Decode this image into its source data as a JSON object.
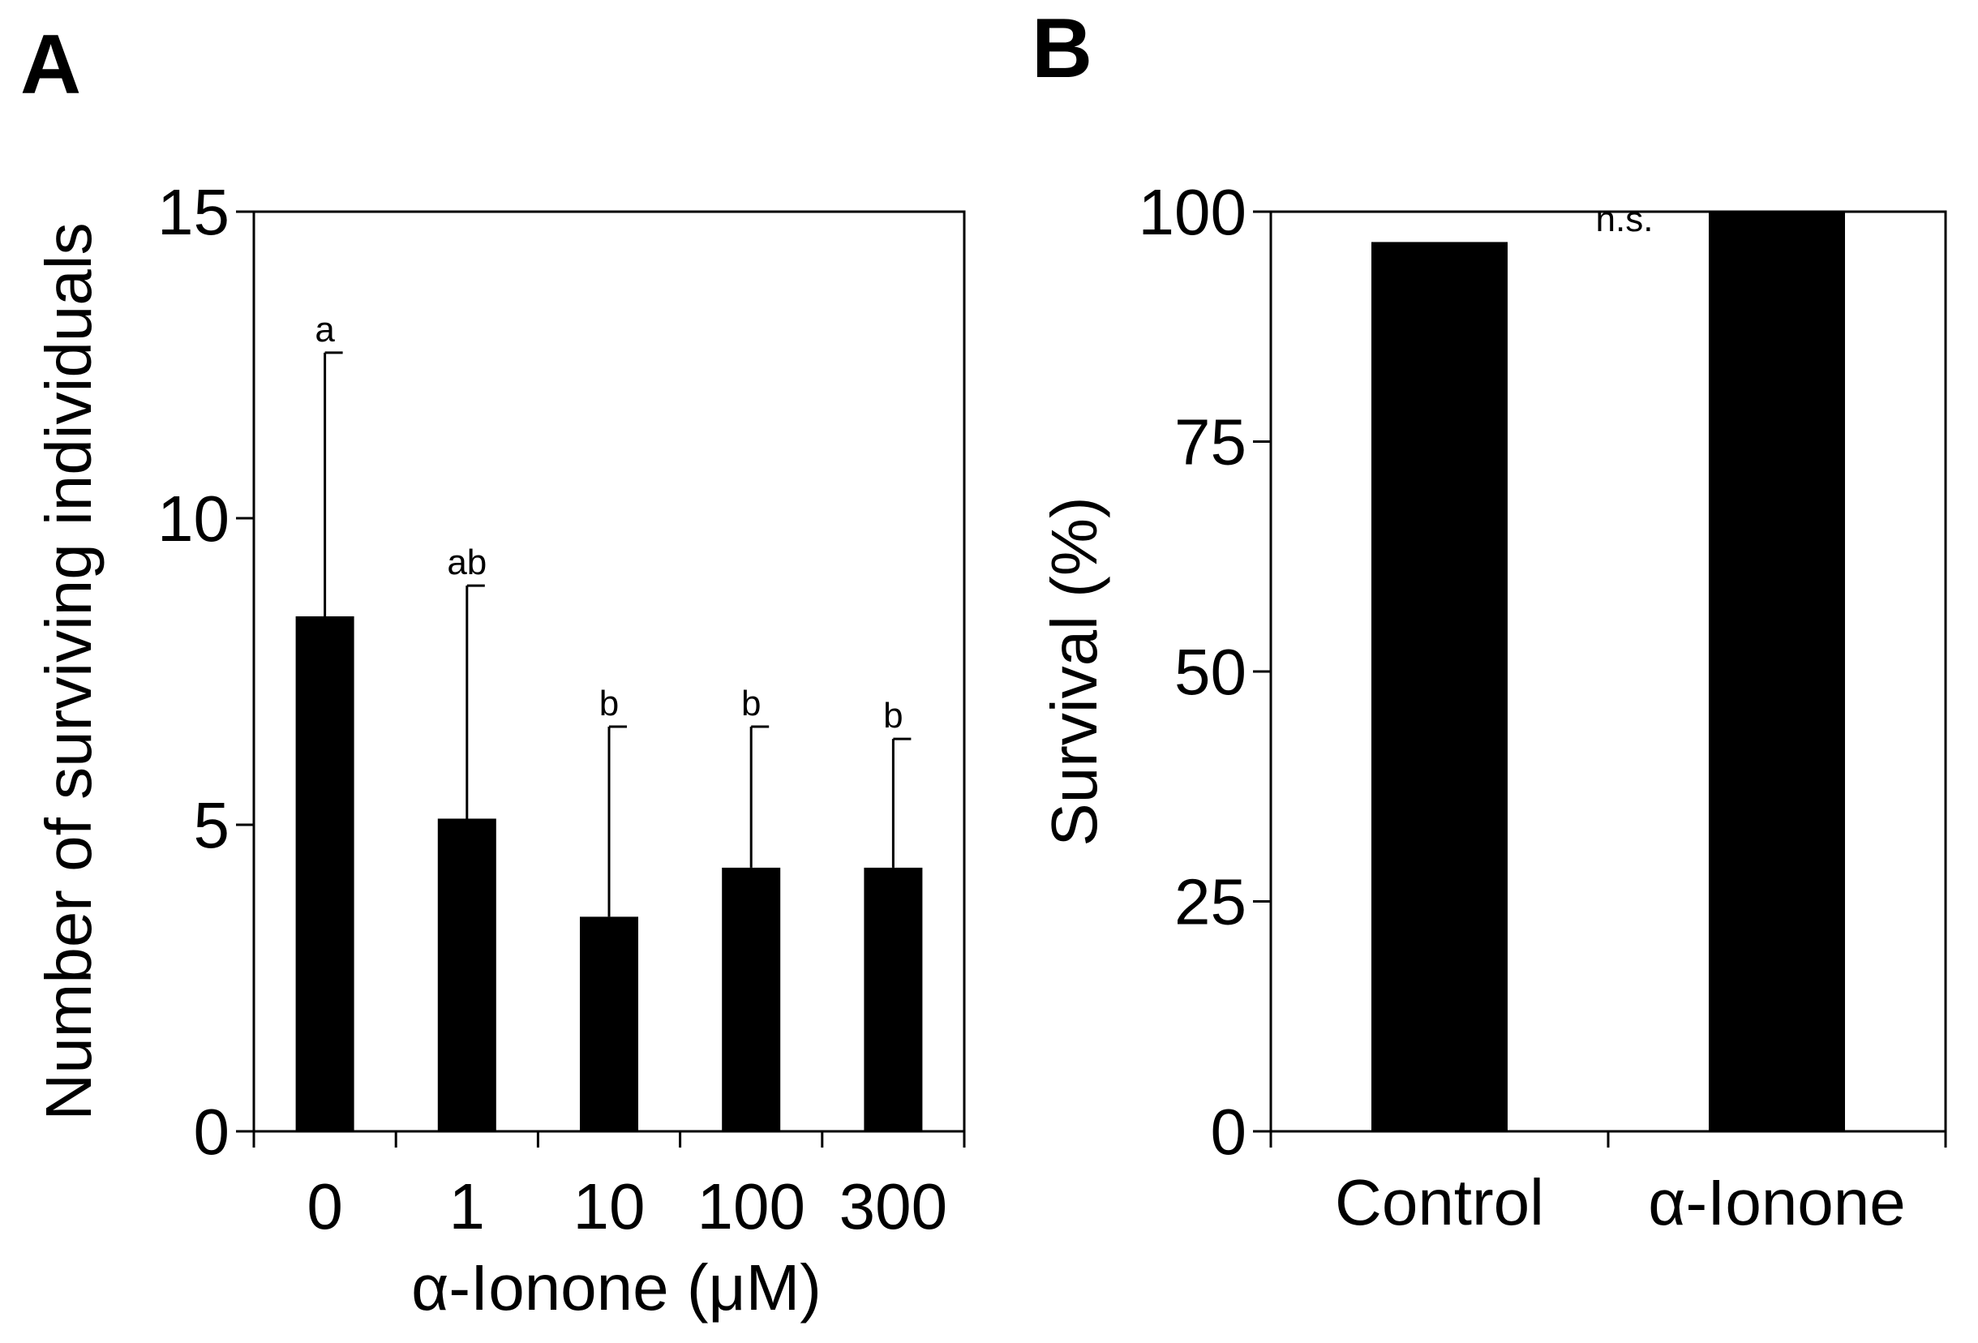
{
  "panels": [
    {
      "letter": "A"
    },
    {
      "letter": "B"
    }
  ],
  "chart_data": [
    {
      "type": "bar",
      "panel": "A",
      "title": "",
      "xlabel": "α-Ionone (μM)",
      "ylabel": "Number of surviving individuals",
      "categories": [
        "0",
        "1",
        "10",
        "100",
        "300"
      ],
      "values": [
        8.4,
        5.1,
        3.5,
        4.3,
        4.3
      ],
      "error_upper": [
        12.7,
        8.9,
        6.6,
        6.6,
        6.4
      ],
      "significance_labels": [
        "a",
        "ab",
        "b",
        "b",
        "b"
      ],
      "ylim": [
        0,
        15
      ],
      "yticks": [
        0,
        5,
        10,
        15
      ],
      "yticklabels": [
        "0",
        "5",
        "10",
        "15"
      ],
      "bar_color": "#000000",
      "grid": false
    },
    {
      "type": "bar",
      "panel": "B",
      "title": "",
      "xlabel": "",
      "ylabel": "Survival (%)",
      "categories": [
        "Control",
        "α-Ionone"
      ],
      "values": [
        96.7,
        100
      ],
      "annotation": "n.s.",
      "ylim": [
        0,
        100
      ],
      "yticks": [
        0,
        25,
        50,
        75,
        100
      ],
      "yticklabels": [
        "0",
        "25",
        "50",
        "75",
        "100"
      ],
      "bar_color": "#000000",
      "grid": false
    }
  ]
}
